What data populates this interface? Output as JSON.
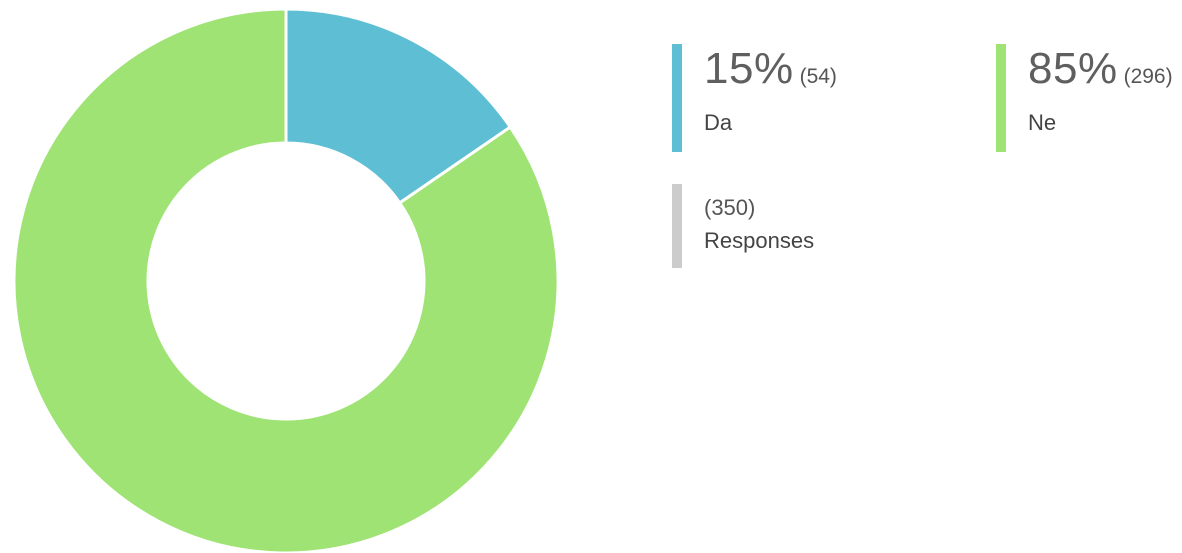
{
  "chart_data": {
    "type": "pie",
    "variant": "donut",
    "categories": [
      "Da",
      "Ne"
    ],
    "values": [
      54,
      296
    ],
    "percentages": [
      "15%",
      "85%"
    ],
    "colors": [
      "#5ebed3",
      "#9ee374"
    ],
    "total": 350,
    "total_label": "Responses",
    "total_color": "#cccccc",
    "legend_position": "right"
  },
  "legend": {
    "da": {
      "pct": "15%",
      "count": "(54)",
      "label": "Da"
    },
    "ne": {
      "pct": "85%",
      "count": "(296)",
      "label": "Ne"
    },
    "responses": {
      "count": "(350)",
      "label": "Responses"
    }
  }
}
